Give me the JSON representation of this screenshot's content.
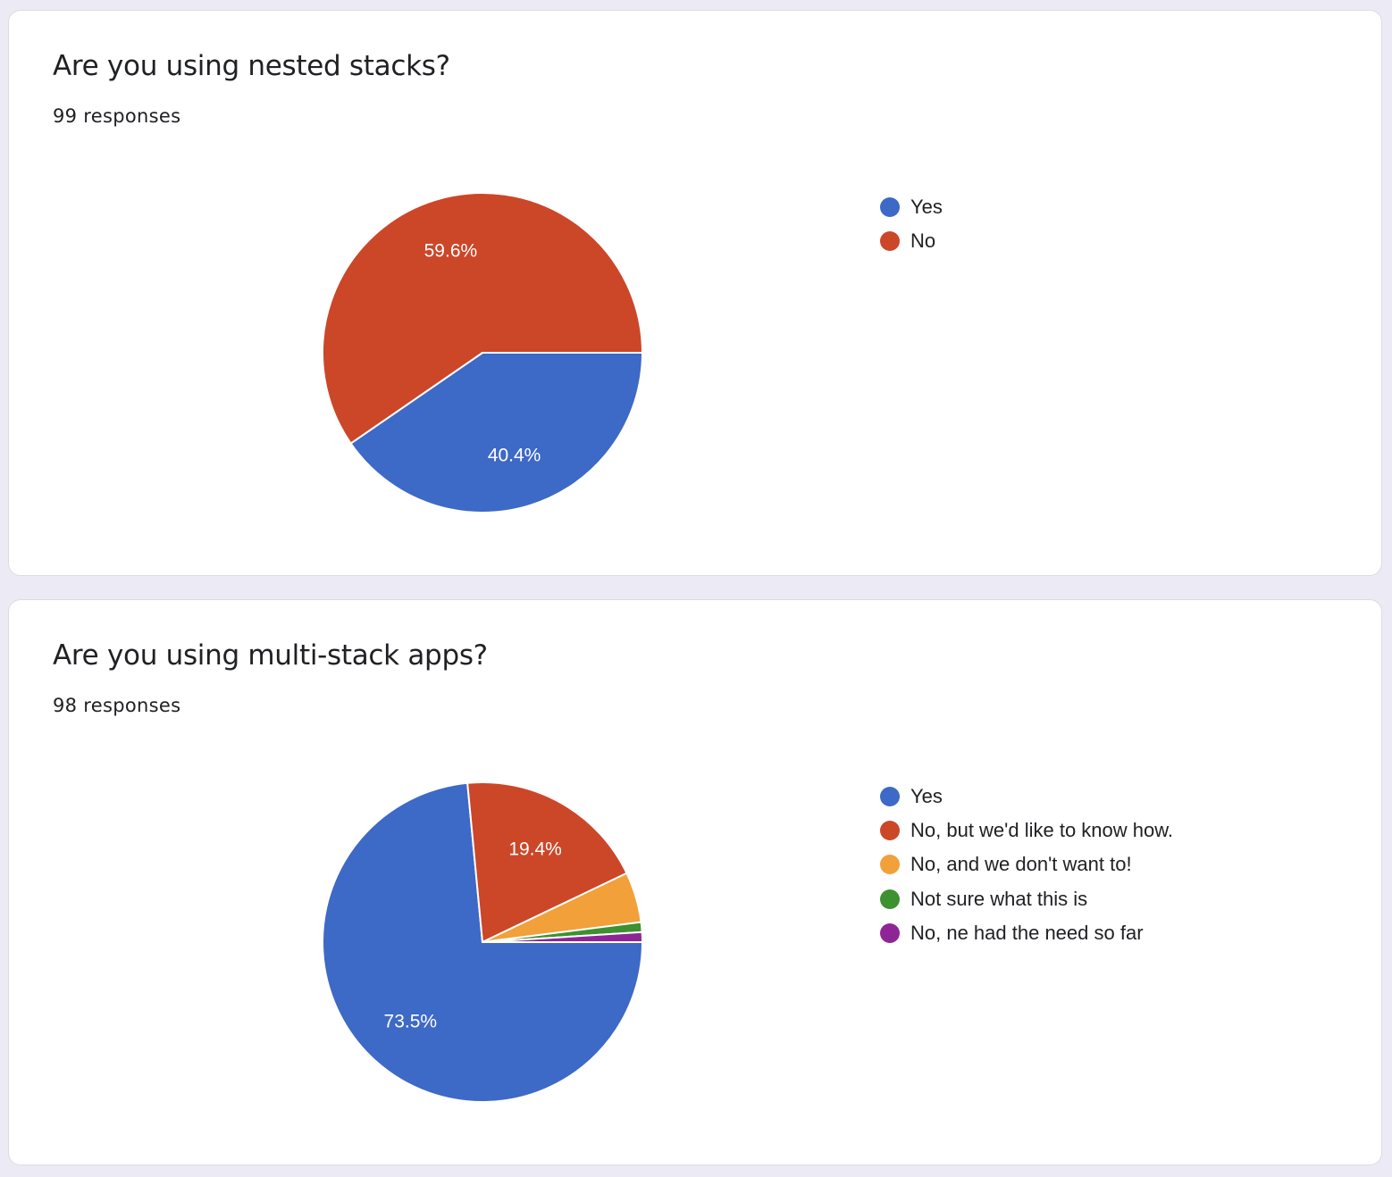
{
  "chart_data": [
    {
      "type": "pie",
      "title": "Are you using nested stacks?",
      "subtitle": "99 responses",
      "categories": [
        "Yes",
        "No"
      ],
      "values": [
        40.4,
        59.6
      ],
      "labels": [
        "40.4%",
        "59.6%"
      ],
      "colors": [
        "#3d69c7",
        "#cc4628"
      ],
      "legend_position": "right"
    },
    {
      "type": "pie",
      "title": "Are you using multi-stack apps?",
      "subtitle": "98 responses",
      "categories": [
        "Yes",
        "No, but we'd like to know how.",
        "No, and we don't want to!",
        "Not sure what this is",
        "No, ne had the need so far"
      ],
      "values": [
        73.5,
        19.4,
        5.1,
        1.0,
        1.0
      ],
      "labels": [
        "73.5%",
        "19.4%",
        "",
        "",
        ""
      ],
      "colors": [
        "#3d69c7",
        "#cc4628",
        "#f2a03a",
        "#3d9130",
        "#8e2596"
      ],
      "legend_position": "right"
    }
  ]
}
